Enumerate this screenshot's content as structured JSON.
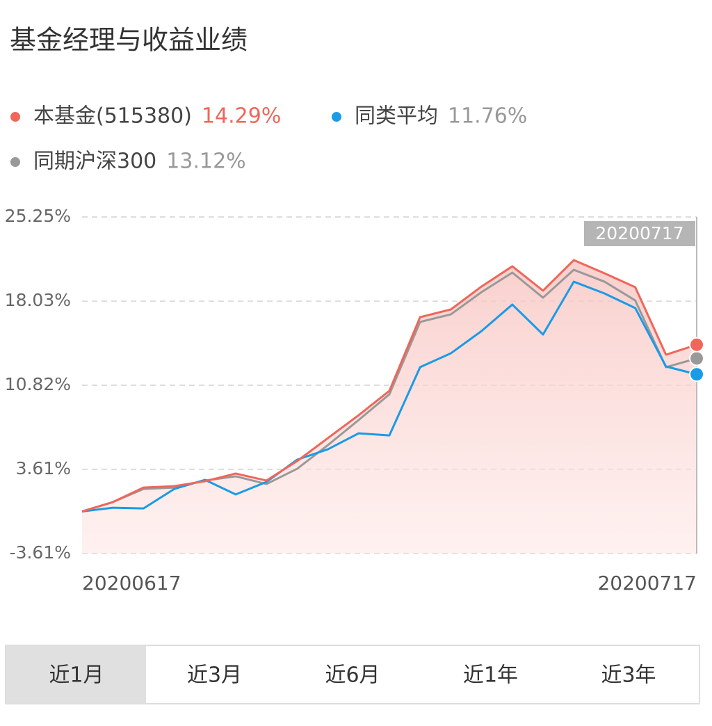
{
  "header": {
    "title": "基金经理与收益业绩"
  },
  "chart_data": {
    "type": "line",
    "categories": [
      "20200617",
      null,
      null,
      null,
      null,
      null,
      null,
      null,
      null,
      null,
      null,
      null,
      null,
      null,
      null,
      null,
      null,
      null,
      null,
      null,
      "20200717"
    ],
    "series": [
      {
        "name": "本基金(515380)",
        "color": "#f0665a",
        "values": [
          0.0,
          0.8,
          2.05,
          2.17,
          2.59,
          3.25,
          2.65,
          4.32,
          6.29,
          8.25,
          10.34,
          16.66,
          17.32,
          19.29,
          21.02,
          18.93,
          21.55,
          20.42,
          19.23,
          13.44,
          14.29
        ],
        "value_labels": [
          null,
          null,
          null,
          null,
          null,
          null,
          null,
          null,
          null,
          null,
          null,
          null,
          null,
          null,
          null,
          null,
          null,
          null,
          null,
          null,
          "14.29%"
        ]
      },
      {
        "name": "同类平均",
        "color": "#1a9be6",
        "values": [
          0.0,
          0.32,
          0.26,
          1.93,
          2.71,
          1.46,
          2.53,
          4.44,
          5.33,
          6.7,
          6.52,
          12.37,
          13.56,
          15.47,
          17.74,
          15.17,
          19.7,
          18.69,
          17.44,
          12.43,
          11.76
        ],
        "value_labels": [
          null,
          null,
          null,
          null,
          null,
          null,
          null,
          null,
          null,
          null,
          null,
          null,
          null,
          null,
          null,
          null,
          null,
          null,
          null,
          null,
          "11.76%"
        ]
      },
      {
        "name": "同期沪深300",
        "color": "#999999",
        "values": [
          0.0,
          0.8,
          1.93,
          2.05,
          2.65,
          3.01,
          2.35,
          3.66,
          5.69,
          7.84,
          10.04,
          16.25,
          16.9,
          18.81,
          20.48,
          18.33,
          20.72,
          19.7,
          18.09,
          12.37,
          13.12
        ],
        "value_labels": [
          null,
          null,
          null,
          null,
          null,
          null,
          null,
          null,
          null,
          null,
          null,
          null,
          null,
          null,
          null,
          null,
          null,
          null,
          null,
          null,
          "13.12%"
        ]
      }
    ],
    "ylim": [
      -3.61,
      25.25
    ],
    "yticks": [
      {
        "value": -3.61,
        "label": "-3.61%"
      },
      {
        "value": 3.61,
        "label": "3.61%"
      },
      {
        "value": 10.82,
        "label": "10.82%"
      },
      {
        "value": 18.03,
        "label": "18.03%"
      },
      {
        "value": 25.25,
        "label": "25.25%"
      }
    ],
    "grid": true,
    "tooltip_label": "20200717"
  },
  "tabs": [
    "近1月",
    "近3月",
    "近6月",
    "近1年",
    "近3年"
  ]
}
